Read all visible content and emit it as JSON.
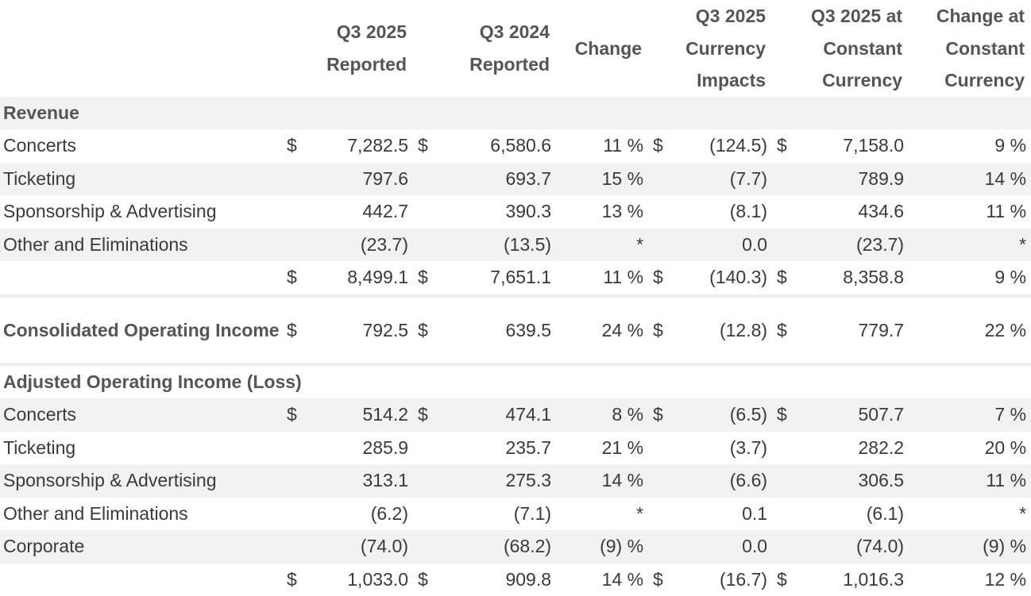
{
  "table": {
    "header": [
      [
        "Q3 2025",
        "Reported"
      ],
      [
        "Q3 2024",
        "Reported"
      ],
      [
        "Change"
      ],
      [
        "Q3 2025",
        "Currency",
        "Impacts"
      ],
      [
        "Q3 2025 at",
        "Constant",
        "Currency"
      ],
      [
        "Change at",
        "Constant",
        "Currency"
      ]
    ],
    "rows": [
      [
        "Revenue"
      ],
      [
        "Concerts",
        "$",
        "7,282.5",
        "$",
        "6,580.6",
        "11 %",
        "$",
        "(124.5)",
        "$",
        "7,158.0",
        "9 %"
      ],
      [
        "Ticketing",
        null,
        "797.6",
        null,
        "693.7",
        "15 %",
        null,
        "(7.7)",
        null,
        "789.9",
        "14 %"
      ],
      [
        "Sponsorship & Advertising",
        null,
        "442.7",
        null,
        "390.3",
        "13 %",
        null,
        "(8.1)",
        null,
        "434.6",
        "11 %"
      ],
      [
        "Other and Eliminations",
        null,
        "(23.7)",
        null,
        "(13.5)",
        "*",
        null,
        "0.0",
        null,
        "(23.7)",
        "*"
      ],
      [
        null,
        "$",
        "8,499.1",
        "$",
        "7,651.1",
        "11 %",
        "$",
        "(140.3)",
        "$",
        "8,358.8",
        "9 %"
      ],
      [
        "Consolidated Operating Income",
        "$",
        "792.5",
        "$",
        "639.5",
        "24 %",
        "$",
        "(12.8)",
        "$",
        "779.7",
        "22 %"
      ],
      [
        "Adjusted Operating Income (Loss)"
      ],
      [
        "Concerts",
        "$",
        "514.2",
        "$",
        "474.1",
        "8 %",
        "$",
        "(6.5)",
        "$",
        "507.7",
        "7 %"
      ],
      [
        "Ticketing",
        null,
        "285.9",
        null,
        "235.7",
        "21 %",
        null,
        "(3.7)",
        null,
        "282.2",
        "20 %"
      ],
      [
        "Sponsorship & Advertising",
        null,
        "313.1",
        null,
        "275.3",
        "14 %",
        null,
        "(6.6)",
        null,
        "306.5",
        "11 %"
      ],
      [
        "Other and Eliminations",
        null,
        "(6.2)",
        null,
        "(7.1)",
        "*",
        null,
        "0.1",
        null,
        "(6.1)",
        "*"
      ],
      [
        "Corporate",
        null,
        "(74.0)",
        null,
        "(68.2)",
        "(9) %",
        null,
        "0.0",
        null,
        "(74.0)",
        "(9) %"
      ],
      [
        null,
        "$",
        "1,033.0",
        "$",
        "909.8",
        "14 %",
        "$",
        "(16.7)",
        "$",
        "1,016.3",
        "12 %"
      ]
    ]
  }
}
